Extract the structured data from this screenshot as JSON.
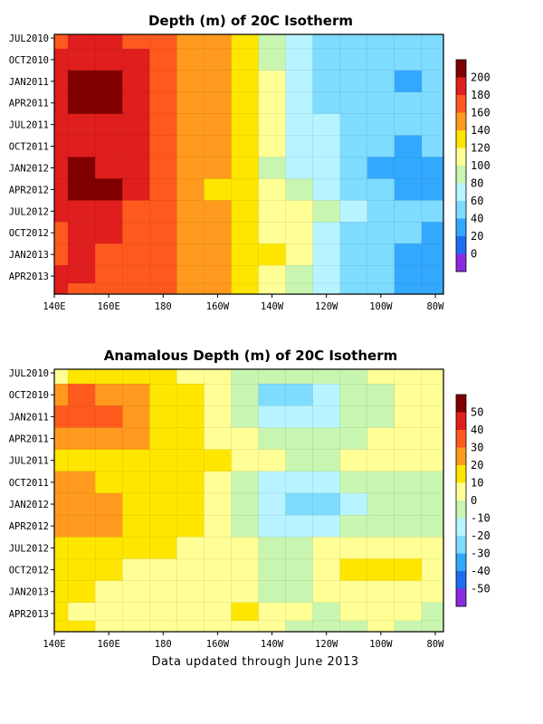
{
  "footer": "Data updated through June 2013",
  "chart_data": [
    {
      "type": "heatmap",
      "title": "Depth (m) of 20C Isotherm",
      "xlabel": "",
      "ylabel": "",
      "x_ticks": [
        "140E",
        "160E",
        "180",
        "160W",
        "140W",
        "120W",
        "100W",
        "80W"
      ],
      "x_tick_lon": [
        140,
        160,
        180,
        200,
        220,
        240,
        260,
        280
      ],
      "y_ticks": [
        "JUL2010",
        "OCT2010",
        "JAN2011",
        "APR2011",
        "JUL2011",
        "OCT2011",
        "JAN2012",
        "APR2012",
        "JUL2012",
        "OCT2012",
        "JAN2013",
        "APR2013"
      ],
      "y_tick_month_index": [
        0,
        3,
        6,
        9,
        12,
        15,
        18,
        21,
        24,
        27,
        30,
        33
      ],
      "legend_levels": [
        0,
        20,
        40,
        60,
        80,
        100,
        120,
        140,
        160,
        180,
        200
      ],
      "legend_colors": [
        "#8a2be2",
        "#1e6cf0",
        "#33a8ff",
        "#7ddcff",
        "#b8f4ff",
        "#c8f5b0",
        "#ffff96",
        "#ffe600",
        "#ff9a1e",
        "#ff5a1e",
        "#e01e1e",
        "#800000"
      ],
      "lon_samples": [
        140,
        150,
        160,
        170,
        180,
        190,
        200,
        210,
        220,
        230,
        240,
        250,
        260,
        270,
        280
      ],
      "grid_month_index": [
        0,
        3,
        6,
        9,
        12,
        15,
        18,
        21,
        24,
        27,
        30,
        33,
        35
      ],
      "values": [
        [
          170,
          185,
          185,
          175,
          160,
          150,
          140,
          120,
          90,
          70,
          55,
          55,
          45,
          40,
          45
        ],
        [
          180,
          195,
          190,
          180,
          160,
          150,
          145,
          125,
          95,
          70,
          55,
          50,
          45,
          40,
          45
        ],
        [
          185,
          205,
          200,
          185,
          165,
          150,
          150,
          130,
          100,
          75,
          55,
          50,
          40,
          35,
          40
        ],
        [
          190,
          205,
          205,
          190,
          170,
          150,
          150,
          130,
          100,
          75,
          55,
          50,
          45,
          40,
          50
        ],
        [
          185,
          195,
          190,
          180,
          165,
          150,
          145,
          125,
          100,
          75,
          60,
          50,
          45,
          45,
          55
        ],
        [
          185,
          190,
          185,
          180,
          165,
          150,
          140,
          125,
          100,
          75,
          60,
          45,
          40,
          35,
          40
        ],
        [
          190,
          200,
          195,
          190,
          170,
          150,
          140,
          120,
          95,
          75,
          60,
          45,
          35,
          30,
          30
        ],
        [
          195,
          210,
          200,
          185,
          165,
          150,
          135,
          120,
          100,
          85,
          70,
          55,
          40,
          35,
          35
        ],
        [
          180,
          190,
          185,
          170,
          160,
          150,
          140,
          125,
          110,
          100,
          80,
          60,
          50,
          40,
          40
        ],
        [
          175,
          185,
          180,
          170,
          160,
          155,
          145,
          130,
          115,
          100,
          75,
          55,
          45,
          40,
          35
        ],
        [
          170,
          180,
          175,
          170,
          160,
          150,
          140,
          130,
          120,
          100,
          70,
          55,
          45,
          35,
          30
        ],
        [
          185,
          180,
          175,
          170,
          160,
          150,
          140,
          130,
          110,
          90,
          70,
          50,
          45,
          35,
          25
        ],
        [
          180,
          175,
          170,
          170,
          160,
          150,
          140,
          130,
          110,
          90,
          70,
          50,
          40,
          30,
          25
        ]
      ]
    },
    {
      "type": "heatmap",
      "title": "Anamalous Depth (m) of 20C Isotherm",
      "xlabel": "",
      "ylabel": "",
      "x_ticks": [
        "140E",
        "160E",
        "180",
        "160W",
        "140W",
        "120W",
        "100W",
        "80W"
      ],
      "x_tick_lon": [
        140,
        160,
        180,
        200,
        220,
        240,
        260,
        280
      ],
      "y_ticks": [
        "JUL2010",
        "OCT2010",
        "JAN2011",
        "APR2011",
        "JUL2011",
        "OCT2011",
        "JAN2012",
        "APR2012",
        "JUL2012",
        "OCT2012",
        "JAN2013",
        "APR2013"
      ],
      "y_tick_month_index": [
        0,
        3,
        6,
        9,
        12,
        15,
        18,
        21,
        24,
        27,
        30,
        33
      ],
      "legend_levels": [
        -50,
        -40,
        -30,
        -20,
        -10,
        0,
        10,
        20,
        30,
        40,
        50
      ],
      "legend_colors": [
        "#8a2be2",
        "#1e6cf0",
        "#33a8ff",
        "#7ddcff",
        "#b8f4ff",
        "#c8f5b0",
        "#ffff96",
        "#ffe600",
        "#ff9a1e",
        "#ff5a1e",
        "#e01e1e",
        "#800000"
      ],
      "lon_samples": [
        140,
        150,
        160,
        170,
        180,
        190,
        200,
        210,
        220,
        230,
        240,
        250,
        260,
        270,
        280
      ],
      "grid_month_index": [
        0,
        3,
        6,
        9,
        12,
        15,
        18,
        21,
        24,
        27,
        30,
        33,
        35
      ],
      "values": [
        [
          5,
          12,
          15,
          15,
          10,
          8,
          5,
          -3,
          -8,
          -10,
          -5,
          -5,
          0,
          5,
          5
        ],
        [
          25,
          30,
          25,
          20,
          15,
          10,
          5,
          -10,
          -25,
          -30,
          -20,
          -10,
          -5,
          0,
          0
        ],
        [
          30,
          35,
          30,
          25,
          18,
          12,
          5,
          -5,
          -15,
          -20,
          -15,
          -8,
          -5,
          0,
          5
        ],
        [
          25,
          25,
          25,
          20,
          15,
          12,
          8,
          0,
          -5,
          -8,
          -5,
          -3,
          0,
          5,
          5
        ],
        [
          15,
          15,
          15,
          15,
          12,
          12,
          10,
          5,
          0,
          -3,
          -3,
          0,
          0,
          5,
          0
        ],
        [
          20,
          20,
          18,
          15,
          12,
          10,
          8,
          -5,
          -15,
          -15,
          -12,
          -8,
          -5,
          -5,
          -5
        ],
        [
          25,
          25,
          20,
          15,
          12,
          10,
          5,
          -5,
          -20,
          -25,
          -22,
          -15,
          -8,
          -5,
          -5
        ],
        [
          25,
          25,
          20,
          15,
          12,
          10,
          5,
          -8,
          -15,
          -18,
          -15,
          -10,
          -5,
          -3,
          -3
        ],
        [
          15,
          15,
          12,
          10,
          10,
          8,
          5,
          0,
          -5,
          -5,
          0,
          5,
          8,
          5,
          5
        ],
        [
          10,
          10,
          10,
          8,
          8,
          5,
          3,
          0,
          -3,
          -3,
          5,
          10,
          15,
          10,
          5
        ],
        [
          10,
          10,
          8,
          8,
          5,
          5,
          3,
          0,
          -3,
          -5,
          0,
          5,
          5,
          0,
          0
        ],
        [
          10,
          8,
          5,
          8,
          5,
          5,
          8,
          10,
          5,
          0,
          -3,
          0,
          5,
          0,
          -5
        ],
        [
          10,
          10,
          8,
          8,
          5,
          5,
          5,
          5,
          0,
          -5,
          -8,
          -5,
          0,
          -5,
          -8
        ]
      ]
    }
  ]
}
